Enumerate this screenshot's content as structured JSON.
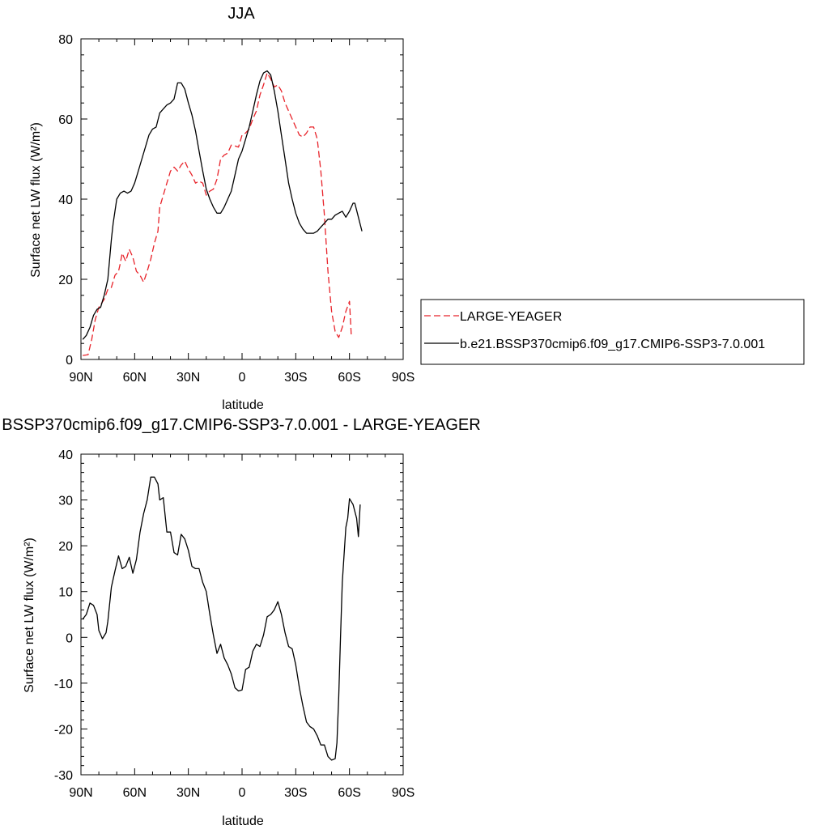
{
  "chart_data": [
    {
      "type": "line",
      "title": "JJA",
      "xlabel": "latitude",
      "ylabel": "Surface net LW flux (W/m²)",
      "xlim": [
        90,
        -90
      ],
      "ylim": [
        0,
        80
      ],
      "x_tick_labels": [
        "90N",
        "60N",
        "30N",
        "0",
        "30S",
        "60S",
        "90S"
      ],
      "x_ticks": [
        90,
        60,
        30,
        0,
        -30,
        -60,
        -90
      ],
      "y_ticks": [
        0,
        20,
        40,
        60,
        80
      ],
      "legend_position": "right",
      "series": [
        {
          "name": "LARGE-YEAGER",
          "color": "#e8232a",
          "dash": "dashed",
          "points": [
            [
              89,
              1
            ],
            [
              86,
              1.2
            ],
            [
              84,
              5
            ],
            [
              82,
              10
            ],
            [
              80,
              13
            ],
            [
              77,
              15
            ],
            [
              75,
              17.5
            ],
            [
              73,
              18
            ],
            [
              71,
              21
            ],
            [
              69,
              22
            ],
            [
              68,
              24
            ],
            [
              67,
              26.5
            ],
            [
              65,
              24.5
            ],
            [
              63,
              27.5
            ],
            [
              61,
              25.5
            ],
            [
              59,
              22
            ],
            [
              57,
              21
            ],
            [
              55,
              19.3
            ],
            [
              53,
              22
            ],
            [
              51,
              25
            ],
            [
              49,
              29
            ],
            [
              47,
              32
            ],
            [
              46,
              38
            ],
            [
              44,
              41
            ],
            [
              42,
              44
            ],
            [
              40,
              47
            ],
            [
              38,
              48
            ],
            [
              36,
              47
            ],
            [
              34,
              48.5
            ],
            [
              32,
              49.5
            ],
            [
              30,
              47.5
            ],
            [
              28,
              46
            ],
            [
              26,
              44
            ],
            [
              24,
              44.5
            ],
            [
              22,
              44
            ],
            [
              20,
              41
            ],
            [
              18,
              42
            ],
            [
              16,
              42.5
            ],
            [
              14,
              45
            ],
            [
              12,
              50
            ],
            [
              10,
              51
            ],
            [
              8,
              51.5
            ],
            [
              6,
              53.5
            ],
            [
              4,
              53.3
            ],
            [
              2,
              53
            ],
            [
              0,
              56
            ],
            [
              -2,
              56.5
            ],
            [
              -4,
              57.5
            ],
            [
              -6,
              60
            ],
            [
              -8,
              62
            ],
            [
              -10,
              66
            ],
            [
              -12,
              68.5
            ],
            [
              -14,
              71.5
            ],
            [
              -16,
              70
            ],
            [
              -18,
              68
            ],
            [
              -20,
              68.5
            ],
            [
              -22,
              67
            ],
            [
              -24,
              64
            ],
            [
              -26,
              62
            ],
            [
              -28,
              60
            ],
            [
              -30,
              58
            ],
            [
              -32,
              56
            ],
            [
              -34,
              55.5
            ],
            [
              -36,
              56.5
            ],
            [
              -38,
              58
            ],
            [
              -40,
              58
            ],
            [
              -42,
              55
            ],
            [
              -44,
              47
            ],
            [
              -46,
              36
            ],
            [
              -48,
              22
            ],
            [
              -50,
              12
            ],
            [
              -52,
              7
            ],
            [
              -54,
              5.5
            ],
            [
              -56,
              8
            ],
            [
              -58,
              12
            ],
            [
              -60,
              14.5
            ],
            [
              -61,
              6
            ]
          ]
        },
        {
          "name": "b.e21.BSSP370cmip6.f09_g17.CMIP6-SSP3-7.0.001",
          "color": "#000000",
          "dash": "solid",
          "points": [
            [
              89,
              5
            ],
            [
              87,
              6
            ],
            [
              85,
              8
            ],
            [
              83,
              11
            ],
            [
              81,
              12.5
            ],
            [
              79,
              13
            ],
            [
              77,
              16
            ],
            [
              75,
              20
            ],
            [
              74,
              25
            ],
            [
              73,
              30
            ],
            [
              72,
              34
            ],
            [
              71,
              37
            ],
            [
              70,
              40
            ],
            [
              68,
              41.5
            ],
            [
              66,
              42
            ],
            [
              64,
              41.5
            ],
            [
              62,
              42
            ],
            [
              60,
              44
            ],
            [
              58,
              47
            ],
            [
              56,
              50
            ],
            [
              54,
              53
            ],
            [
              52,
              56
            ],
            [
              50,
              57.5
            ],
            [
              48,
              58
            ],
            [
              46,
              61.5
            ],
            [
              44,
              62.5
            ],
            [
              42,
              63.5
            ],
            [
              40,
              64
            ],
            [
              38,
              65
            ],
            [
              36,
              69
            ],
            [
              34,
              69
            ],
            [
              32,
              67.5
            ],
            [
              30,
              64
            ],
            [
              28,
              61
            ],
            [
              26,
              57
            ],
            [
              24,
              52
            ],
            [
              22,
              47
            ],
            [
              20,
              42.5
            ],
            [
              18,
              40
            ],
            [
              16,
              38
            ],
            [
              14,
              36.5
            ],
            [
              12,
              36.5
            ],
            [
              10,
              38
            ],
            [
              8,
              40
            ],
            [
              6,
              42
            ],
            [
              4,
              46
            ],
            [
              2,
              50
            ],
            [
              0,
              52
            ],
            [
              -2,
              55
            ],
            [
              -4,
              58
            ],
            [
              -6,
              62
            ],
            [
              -8,
              66
            ],
            [
              -10,
              69.5
            ],
            [
              -12,
              71.5
            ],
            [
              -14,
              72
            ],
            [
              -16,
              71
            ],
            [
              -18,
              67
            ],
            [
              -20,
              62
            ],
            [
              -22,
              56
            ],
            [
              -24,
              50
            ],
            [
              -26,
              44
            ],
            [
              -28,
              40
            ],
            [
              -30,
              36.5
            ],
            [
              -32,
              34
            ],
            [
              -34,
              32.5
            ],
            [
              -36,
              31.5
            ],
            [
              -38,
              31.5
            ],
            [
              -40,
              31.5
            ],
            [
              -42,
              32
            ],
            [
              -44,
              33
            ],
            [
              -46,
              34
            ],
            [
              -48,
              35
            ],
            [
              -50,
              35
            ],
            [
              -52,
              36
            ],
            [
              -54,
              36.5
            ],
            [
              -56,
              37
            ],
            [
              -58,
              35.5
            ],
            [
              -60,
              37
            ],
            [
              -62,
              39
            ],
            [
              -63,
              39
            ],
            [
              -65,
              35.5
            ],
            [
              -67,
              32
            ]
          ]
        }
      ]
    },
    {
      "type": "line",
      "title": "BSSP370cmip6.f09_g17.CMIP6-SSP3-7.0.001 - LARGE-YEAGER",
      "xlabel": "latitude",
      "ylabel": "Surface net LW flux (W/m²)",
      "xlim": [
        90,
        -90
      ],
      "ylim": [
        -30,
        40
      ],
      "x_tick_labels": [
        "90N",
        "60N",
        "30N",
        "0",
        "30S",
        "60S",
        "90S"
      ],
      "x_ticks": [
        90,
        60,
        30,
        0,
        -30,
        -60,
        -90
      ],
      "y_ticks": [
        -30,
        -20,
        -10,
        0,
        10,
        20,
        30,
        40
      ],
      "series": [
        {
          "color": "#000000",
          "dash": "solid",
          "points": [
            [
              89,
              4
            ],
            [
              87,
              5
            ],
            [
              85,
              7.5
            ],
            [
              83,
              7
            ],
            [
              81,
              5
            ],
            [
              80,
              1.5
            ],
            [
              78,
              -0.3
            ],
            [
              76,
              1
            ],
            [
              75,
              3.5
            ],
            [
              73,
              11
            ],
            [
              71,
              14.5
            ],
            [
              69,
              17.8
            ],
            [
              67,
              15
            ],
            [
              65,
              15.5
            ],
            [
              63,
              17.5
            ],
            [
              61,
              14
            ],
            [
              59,
              17
            ],
            [
              57,
              23
            ],
            [
              55,
              27
            ],
            [
              53,
              30
            ],
            [
              51,
              35
            ],
            [
              49,
              35
            ],
            [
              47,
              33.5
            ],
            [
              46,
              30
            ],
            [
              44,
              30.5
            ],
            [
              42,
              23
            ],
            [
              40,
              23
            ],
            [
              38,
              18.5
            ],
            [
              36,
              18
            ],
            [
              34,
              22.5
            ],
            [
              32,
              21.5
            ],
            [
              30,
              19
            ],
            [
              28,
              15.5
            ],
            [
              26,
              15
            ],
            [
              24,
              15
            ],
            [
              22,
              12
            ],
            [
              20,
              10
            ],
            [
              18,
              5
            ],
            [
              16,
              0.5
            ],
            [
              14,
              -3.5
            ],
            [
              12,
              -1.5
            ],
            [
              10,
              -4.5
            ],
            [
              8,
              -6
            ],
            [
              6,
              -8
            ],
            [
              4,
              -11
            ],
            [
              2,
              -11.7
            ],
            [
              0,
              -11.5
            ],
            [
              -2,
              -7
            ],
            [
              -4,
              -6.5
            ],
            [
              -6,
              -3
            ],
            [
              -8,
              -1.5
            ],
            [
              -10,
              -2
            ],
            [
              -12,
              0.5
            ],
            [
              -14,
              4.5
            ],
            [
              -16,
              5
            ],
            [
              -18,
              6
            ],
            [
              -20,
              7.8
            ],
            [
              -22,
              5
            ],
            [
              -24,
              1
            ],
            [
              -26,
              -2
            ],
            [
              -28,
              -2.5
            ],
            [
              -30,
              -6
            ],
            [
              -32,
              -11
            ],
            [
              -34,
              -15
            ],
            [
              -36,
              -18.5
            ],
            [
              -38,
              -19.5
            ],
            [
              -40,
              -20
            ],
            [
              -42,
              -21.5
            ],
            [
              -44,
              -23.5
            ],
            [
              -46,
              -23.5
            ],
            [
              -48,
              -26
            ],
            [
              -50,
              -26.8
            ],
            [
              -52,
              -26.5
            ],
            [
              -53,
              -23
            ],
            [
              -54,
              -13
            ],
            [
              -55,
              0
            ],
            [
              -56,
              12
            ],
            [
              -58,
              24
            ],
            [
              -59,
              26
            ],
            [
              -60,
              30.3
            ],
            [
              -62,
              29
            ],
            [
              -64,
              26
            ],
            [
              -65,
              22
            ],
            [
              -66,
              29
            ]
          ]
        }
      ]
    }
  ]
}
